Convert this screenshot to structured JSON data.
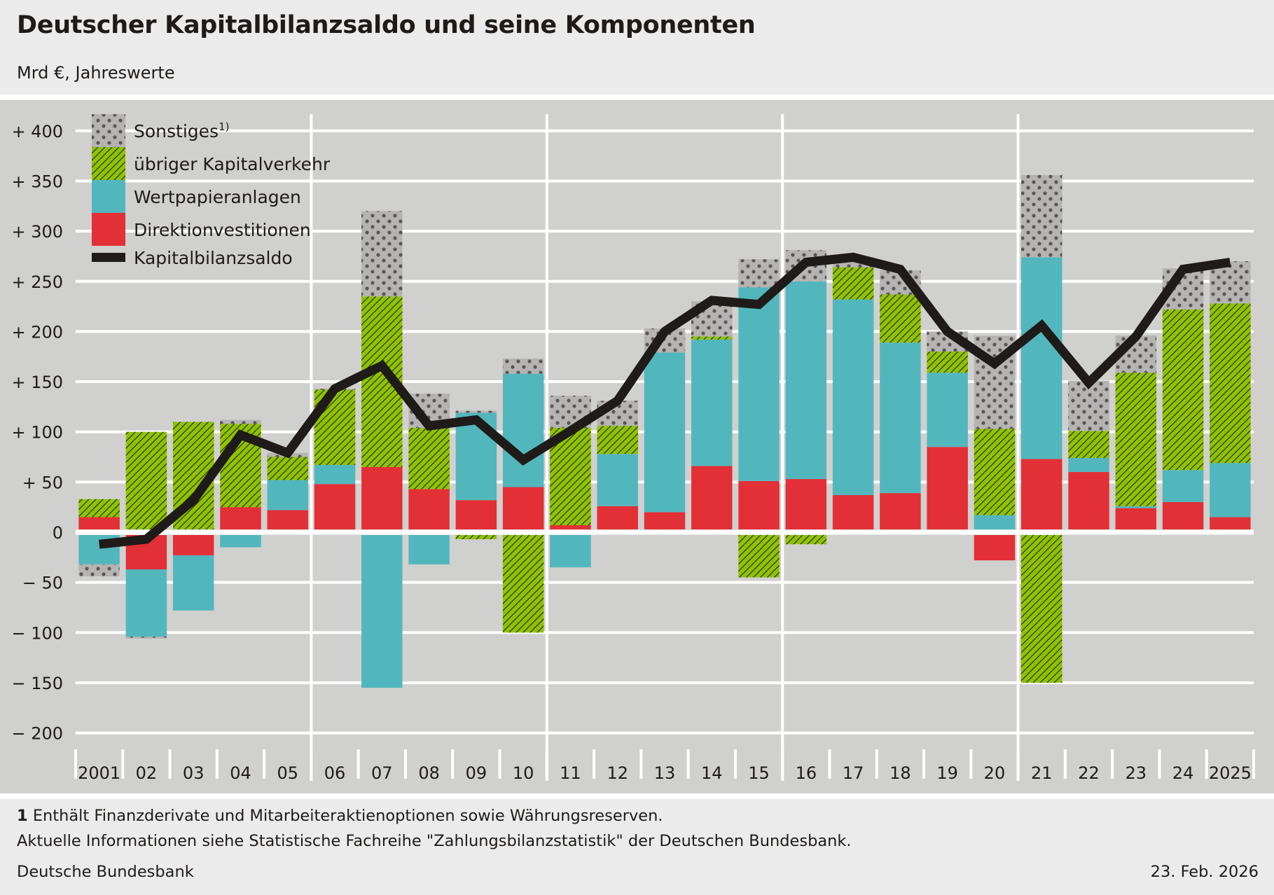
{
  "header": {
    "title": "Deutscher Kapitalbilanzsaldo und seine Komponenten",
    "subtitle": "Mrd €, Jahreswerte"
  },
  "footer": {
    "note_number": "1",
    "note_text": "Enthält Finanzderivate und Mitarbeiteraktienoptionen sowie Währungsreserven.",
    "info": "Aktuelle Informationen siehe Statistische Fachreihe \"Zahlungsbilanzstatistik\" der Deutschen Bundesbank.",
    "source": "Deutsche Bundesbank",
    "date": "23. Feb. 2026"
  },
  "chart_data": {
    "type": "bar",
    "stacked": true,
    "title": "Deutscher Kapitalbilanzsaldo und seine Komponenten",
    "subtitle": "Mrd €, Jahreswerte",
    "xlabel": "",
    "ylabel": "Mrd €",
    "ylim": [
      -200,
      400
    ],
    "yticks": [
      400,
      350,
      300,
      250,
      200,
      150,
      100,
      50,
      0,
      -50,
      -100,
      -150,
      -200
    ],
    "ytick_labels": [
      "+ 400",
      "+ 350",
      "+ 300",
      "+ 250",
      "+ 200",
      "+ 150",
      "+ 100",
      "+   50",
      "0",
      "−   50",
      "− 100",
      "− 150",
      "− 200"
    ],
    "grid": true,
    "legend_position": "top-left",
    "categories": [
      "2001",
      "02",
      "03",
      "04",
      "05",
      "06",
      "07",
      "08",
      "09",
      "10",
      "11",
      "12",
      "13",
      "14",
      "15",
      "16",
      "17",
      "18",
      "19",
      "20",
      "21",
      "22",
      "23",
      "24",
      "2025"
    ],
    "series": [
      {
        "name": "Direktionvestitionen",
        "kind": "bar",
        "color": "#e32f36",
        "pattern": "solid",
        "values": [
          15,
          -37,
          -23,
          25,
          22,
          48,
          65,
          43,
          32,
          45,
          7,
          26,
          20,
          66,
          51,
          53,
          37,
          39,
          85,
          -28,
          73,
          60,
          24,
          30,
          15
        ]
      },
      {
        "name": "Wertpapieranlagen",
        "kind": "bar",
        "color": "#52b7bd",
        "pattern": "solid",
        "values": [
          -32,
          -67,
          -55,
          -15,
          30,
          19,
          -155,
          -32,
          87,
          113,
          -35,
          52,
          159,
          126,
          193,
          197,
          195,
          150,
          74,
          17,
          201,
          14,
          2,
          32,
          54
        ]
      },
      {
        "name": "übriger Kapitalverkehr",
        "kind": "bar",
        "color": "#8fc200",
        "pattern": "hatch",
        "values": [
          18,
          100,
          110,
          83,
          23,
          75,
          170,
          61,
          -7,
          -100,
          97,
          28,
          0,
          3,
          -45,
          -12,
          32,
          48,
          21,
          86,
          -150,
          27,
          133,
          160,
          159
        ]
      },
      {
        "name": "Sonstiges",
        "superscript": "1)",
        "kind": "bar",
        "color": "#b5b4b2",
        "pattern": "dots",
        "values": [
          -12,
          -2,
          0,
          4,
          4,
          1,
          85,
          34,
          2,
          15,
          32,
          25,
          24,
          35,
          28,
          31,
          10,
          24,
          20,
          93,
          82,
          50,
          37,
          41,
          42
        ]
      },
      {
        "name": "Kapitalbilanzsaldo",
        "kind": "line",
        "color": "#1e1b19",
        "values": [
          -12,
          -7,
          32,
          97,
          79,
          143,
          166,
          106,
          112,
          72,
          101,
          131,
          200,
          231,
          227,
          269,
          274,
          262,
          200,
          168,
          206,
          149,
          195,
          262,
          269
        ]
      }
    ],
    "legend": [
      "Sonstiges",
      "übriger Kapitalverkehr",
      "Wertpapieranlagen",
      "Direktionvestitionen",
      "Kapitalbilanzsaldo"
    ]
  }
}
